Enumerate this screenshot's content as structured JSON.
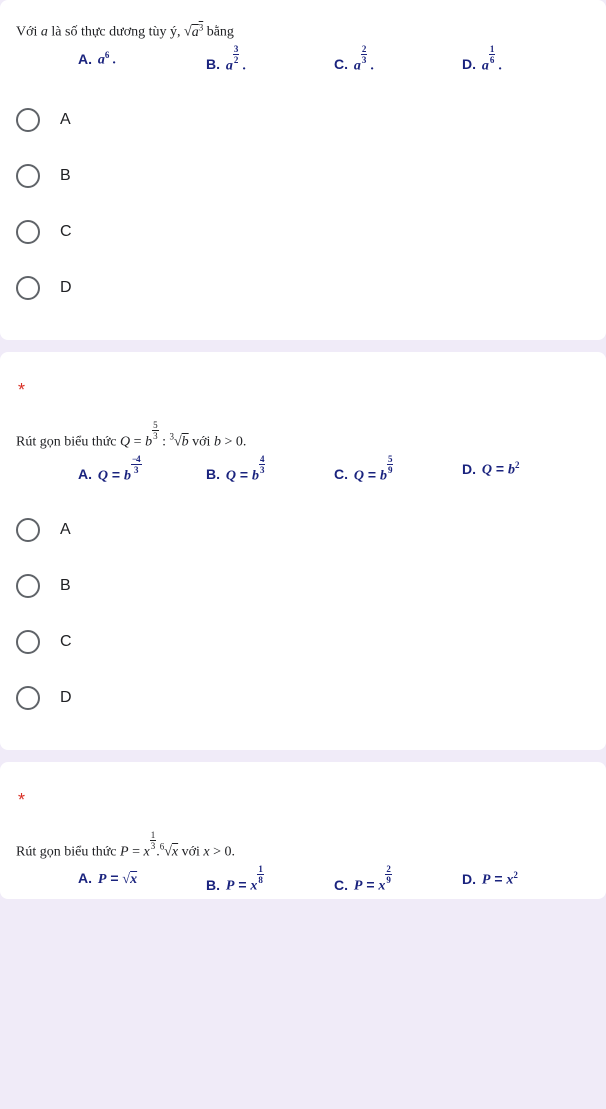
{
  "q1": {
    "prompt_pre": "Với ",
    "prompt_mid": " là số thực dương tùy ý, ",
    "prompt_post": " bằng",
    "a_var": "a",
    "sqrt_inner": "a",
    "sqrt_exp": "3",
    "labelA": "A.",
    "valA_base": "a",
    "valA_exp": "6",
    "labelB": "B.",
    "valB_base": "a",
    "valB_num": "3",
    "valB_den": "2",
    "labelC": "C.",
    "valC_base": "a",
    "valC_num": "2",
    "valC_den": "3",
    "labelD": "D.",
    "valD_base": "a",
    "valD_num": "1",
    "valD_den": "6",
    "optA": "A",
    "optB": "B",
    "optC": "C",
    "optD": "D"
  },
  "q2": {
    "star": "*",
    "prompt_pre": "Rút gọn biểu thức ",
    "eq_lhs": "Q",
    "eq_eq": " = ",
    "b1": "b",
    "b1_num": "5",
    "b1_den": "3",
    "colon": " : ",
    "root_idx": "3",
    "root_rad": "b",
    "cond": " với ",
    "bvar": "b",
    "gt": " > 0.",
    "labelA": "A.",
    "A_lhs": "Q",
    "A_eq": " = ",
    "A_base": "b",
    "A_num": "4",
    "A_den": "3",
    "A_neg": "−",
    "labelB": "B.",
    "B_lhs": "Q",
    "B_eq": " = ",
    "B_base": "b",
    "B_num": "4",
    "B_den": "3",
    "labelC": "C.",
    "C_lhs": "Q",
    "C_eq": " = ",
    "C_base": "b",
    "C_num": "5",
    "C_den": "9",
    "labelD": "D.",
    "D_lhs": "Q",
    "D_eq": " = ",
    "D_base": "b",
    "D_exp": "2",
    "optA": "A",
    "optB": "B",
    "optC": "C",
    "optD": "D"
  },
  "q3": {
    "star": "*",
    "prompt_pre": "Rút gọn biểu thức ",
    "eq_lhs": "P",
    "eq_eq": " = ",
    "x1": "x",
    "x1_num": "1",
    "x1_den": "3",
    "dot": ".",
    "root_idx": "6",
    "root_rad": "x",
    "cond": " với ",
    "xvar": "x",
    "gt": " > 0.",
    "labelA": "A.",
    "A_lhs": "P",
    "A_eq": " = ",
    "A_sqrt": "x",
    "labelB": "B.",
    "B_lhs": "P",
    "B_eq": " = ",
    "B_base": "x",
    "B_num": "1",
    "B_den": "8",
    "labelC": "C.",
    "C_lhs": "P",
    "C_eq": " = ",
    "C_base": "x",
    "C_num": "2",
    "C_den": "9",
    "labelD": "D.",
    "D_lhs": "P",
    "D_eq": " = ",
    "D_base": "x",
    "D_exp": "2"
  }
}
